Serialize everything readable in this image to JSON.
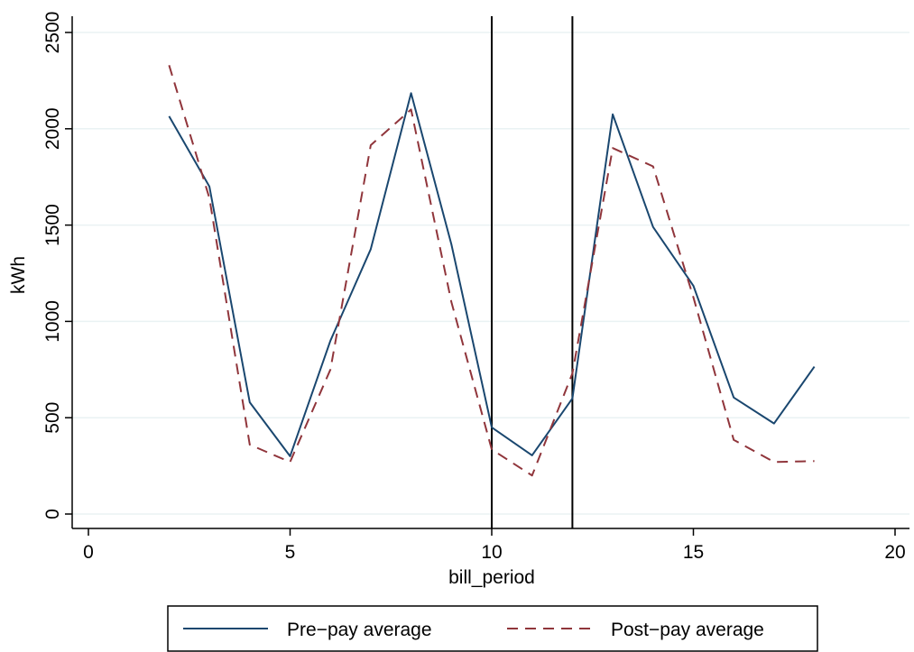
{
  "chart_data": {
    "type": "line",
    "xlabel": "bill_period",
    "ylabel": "kWh",
    "xlim": [
      0,
      20
    ],
    "ylim": [
      0,
      2500
    ],
    "x_ticks": [
      0,
      5,
      10,
      15,
      20
    ],
    "y_ticks": [
      0,
      500,
      1000,
      1500,
      2000,
      2500
    ],
    "grid": "horizontal",
    "legend_position": "bottom",
    "reference_lines_x": [
      10,
      12
    ],
    "colors": {
      "pre": "#1a476f",
      "post": "#90353b"
    },
    "series": [
      {
        "name": "Pre−pay average",
        "style": "solid",
        "x": [
          2,
          3,
          4,
          5,
          6,
          7,
          8,
          9,
          10,
          11,
          12,
          13,
          14,
          15,
          16,
          17,
          18
        ],
        "y": [
          2065,
          1700,
          580,
          300,
          900,
          1375,
          2185,
          1400,
          450,
          305,
          600,
          2075,
          1490,
          1185,
          605,
          470,
          765
        ]
      },
      {
        "name": "Post−pay average",
        "style": "dashed",
        "x": [
          2,
          3,
          4,
          5,
          6,
          7,
          8,
          9,
          10,
          11,
          12,
          13,
          14,
          15,
          16,
          17,
          18
        ],
        "y": [
          2330,
          1640,
          360,
          270,
          750,
          1915,
          2100,
          1100,
          335,
          200,
          730,
          1900,
          1805,
          1125,
          385,
          270,
          275
        ]
      }
    ]
  }
}
